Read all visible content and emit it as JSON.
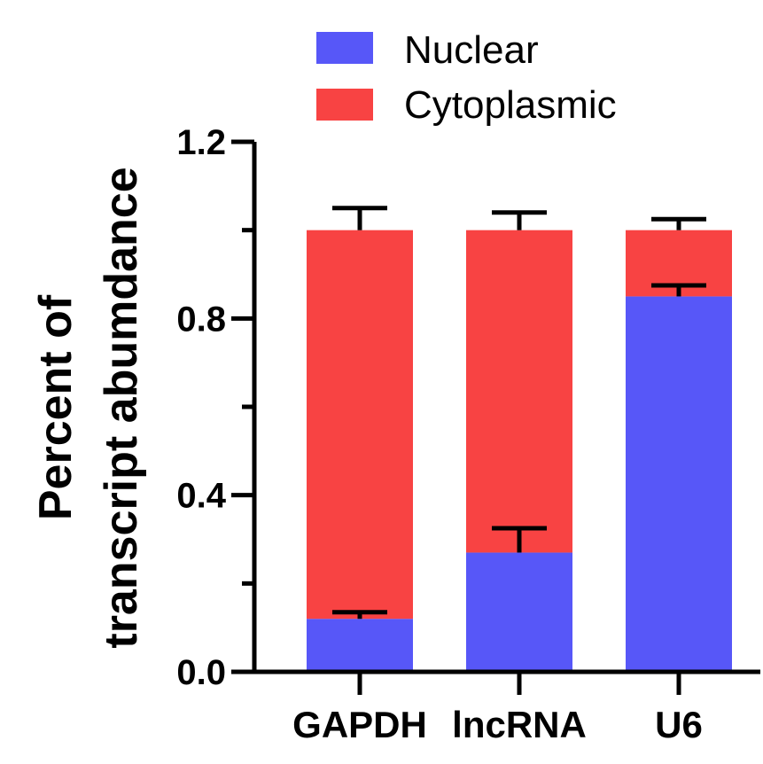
{
  "chart_data": {
    "type": "bar",
    "stacked": true,
    "categories": [
      "GAPDH",
      "lncRNA",
      "U6"
    ],
    "series": [
      {
        "name": "Nuclear",
        "color": "#5757F8",
        "values": [
          0.12,
          0.27,
          0.85
        ],
        "errors": [
          0.015,
          0.055,
          0.025
        ]
      },
      {
        "name": "Cytoplasmic",
        "color": "#F84343",
        "values": [
          0.88,
          0.73,
          0.15
        ],
        "errors": [
          0.05,
          0.04,
          0.025
        ]
      }
    ],
    "ylabel_lines": [
      "Percent of",
      "transcript abumdance"
    ],
    "ylim": [
      0,
      1.2
    ],
    "yticks": [
      "0.0",
      "0.4",
      "0.8",
      "1.2"
    ],
    "ytick_values": [
      0,
      0.4,
      0.8,
      1.2
    ],
    "legend_position": "top"
  }
}
